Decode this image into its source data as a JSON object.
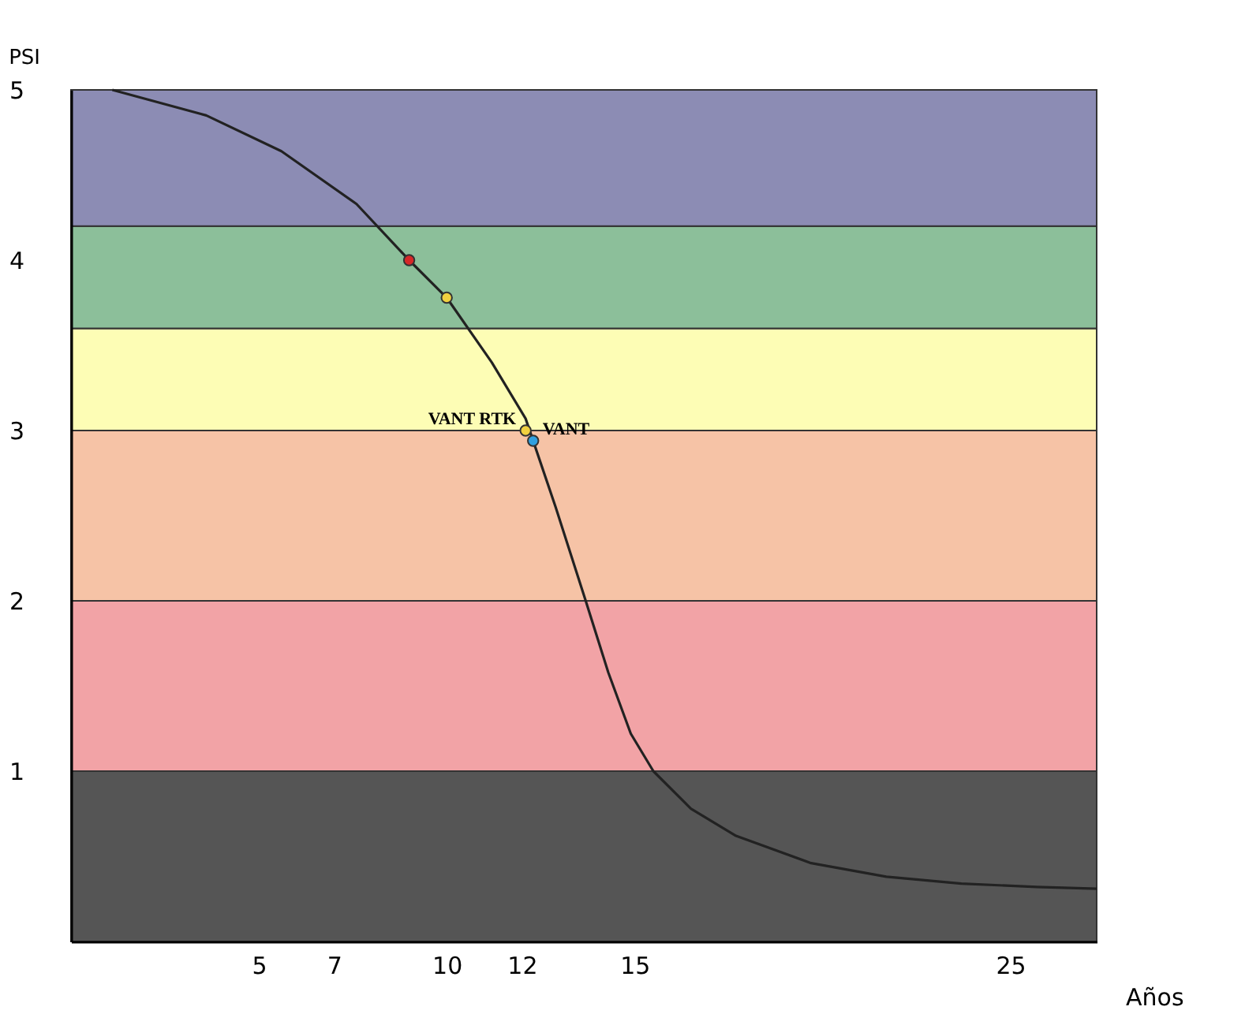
{
  "chart_data": {
    "type": "line",
    "xlabel": "Años",
    "ylabel": "PSI",
    "xlim": [
      0,
      27.3
    ],
    "ylim": [
      0,
      5
    ],
    "xticks": [
      5,
      7,
      10,
      12,
      15,
      25
    ],
    "yticks": [
      1,
      2,
      3,
      4,
      5
    ],
    "grid": false,
    "series": [
      {
        "color": "#222222",
        "x": [
          1.1,
          3.6,
          5.6,
          7.6,
          9.0,
          10.0,
          11.2,
          12.1,
          12.9,
          13.7,
          14.3,
          14.9,
          15.5,
          16.5,
          17.7,
          19.7,
          21.7,
          23.7,
          25.7,
          27.3
        ],
        "values": [
          5,
          4.85,
          4.64,
          4.33,
          4.0,
          3.78,
          3.4,
          3.07,
          2.55,
          2.0,
          1.58,
          1.22,
          1.0,
          0.78,
          0.62,
          0.46,
          0.38,
          0.34,
          0.32,
          0.31
        ]
      },
      {
        "type": "scatter",
        "x": [
          9.0,
          10.0,
          12.1,
          12.3
        ],
        "values": [
          4.0,
          3.78,
          3.0,
          2.94
        ],
        "colors": [
          "#d62828",
          "#f0d040",
          "#f0d040",
          "#30a0e0"
        ]
      }
    ],
    "bands": [
      {
        "axis": "y",
        "from": 0,
        "to": 1,
        "color": "#555555"
      },
      {
        "axis": "y",
        "from": 1,
        "to": 2,
        "color": "#f2a3a6"
      },
      {
        "axis": "y",
        "from": 2,
        "to": 3,
        "color": "#f6c3a6"
      },
      {
        "axis": "y",
        "from": 3,
        "to": 3.6,
        "color": "#fdfdb5"
      },
      {
        "axis": "y",
        "from": 3.6,
        "to": 4.2,
        "color": "#8cbf9a"
      },
      {
        "axis": "y",
        "from": 4.2,
        "to": 5,
        "color": "#8c8cb4"
      }
    ],
    "annotations": [
      {
        "text": "VANT RTK",
        "x": 12.1,
        "y": 3.0
      },
      {
        "text": "VANT",
        "x": 12.3,
        "y": 2.94
      }
    ]
  }
}
